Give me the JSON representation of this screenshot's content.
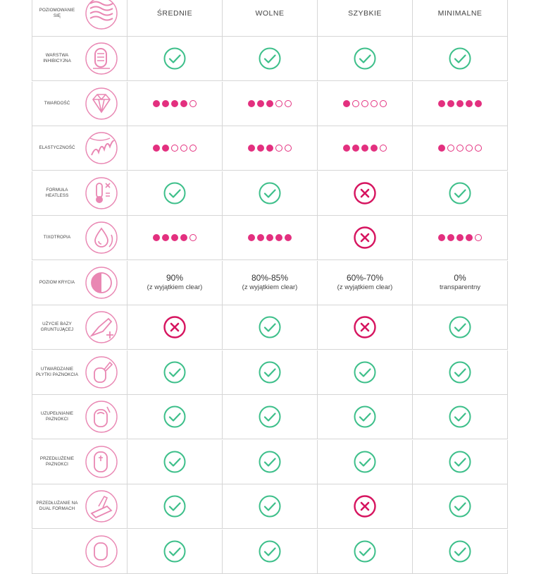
{
  "colors": {
    "check": "#3dbf8a",
    "cross": "#d6145f",
    "dot": "#e3307f",
    "icon": "#e987b3",
    "grid": "#d6d6d6"
  },
  "header": {
    "label": "POZIOMOWANIE SIĘ",
    "icon": "waves-icon",
    "columns": [
      "ŚREDNIE",
      "WOLNE",
      "SZYBKIE",
      "MINIMALNE"
    ]
  },
  "rows": [
    {
      "label": "WARSTWA INHIBICYJNA",
      "icon": "inhibition-layer-icon",
      "cells": [
        {
          "type": "check"
        },
        {
          "type": "check"
        },
        {
          "type": "check"
        },
        {
          "type": "check"
        }
      ]
    },
    {
      "label": "TWARDOŚĆ",
      "icon": "diamond-icon",
      "cells": [
        {
          "type": "dots",
          "value": 4
        },
        {
          "type": "dots",
          "value": 3
        },
        {
          "type": "dots",
          "value": 1
        },
        {
          "type": "dots",
          "value": 5
        }
      ]
    },
    {
      "label": "ELASTYCZNOŚĆ",
      "icon": "spring-icon",
      "cells": [
        {
          "type": "dots",
          "value": 2
        },
        {
          "type": "dots",
          "value": 3
        },
        {
          "type": "dots",
          "value": 4
        },
        {
          "type": "dots",
          "value": 1
        }
      ]
    },
    {
      "label": "FORMUŁA HEATLESS",
      "icon": "thermometer-icon",
      "cells": [
        {
          "type": "check"
        },
        {
          "type": "check"
        },
        {
          "type": "cross"
        },
        {
          "type": "check"
        }
      ]
    },
    {
      "label": "TIXOTROPIA",
      "icon": "drop-cycle-icon",
      "cells": [
        {
          "type": "dots",
          "value": 4
        },
        {
          "type": "dots",
          "value": 5
        },
        {
          "type": "cross"
        },
        {
          "type": "dots",
          "value": 4
        }
      ]
    },
    {
      "label": "POZIOM KRYCIA",
      "icon": "half-circle-icon",
      "cells": [
        {
          "type": "text",
          "pct": "90%",
          "note": "(z wyjątkiem clear)"
        },
        {
          "type": "text",
          "pct": "80%-85%",
          "note": "(z wyjątkiem clear)"
        },
        {
          "type": "text",
          "pct": "60%-70%",
          "note": "(z wyjątkiem clear)"
        },
        {
          "type": "text",
          "pct": "0%",
          "note": "transparentny"
        }
      ]
    },
    {
      "label": "UŻYCIE BAZY GRUNTUJĄCEJ",
      "icon": "brush-plus-icon",
      "cells": [
        {
          "type": "cross"
        },
        {
          "type": "check"
        },
        {
          "type": "cross"
        },
        {
          "type": "check"
        }
      ]
    },
    {
      "label": "UTWARDZANIE PŁYTKI PAZNOKCIA",
      "icon": "nail-brush-icon",
      "cells": [
        {
          "type": "check"
        },
        {
          "type": "check"
        },
        {
          "type": "check"
        },
        {
          "type": "check"
        }
      ]
    },
    {
      "label": "UZUPEŁNIANIE PAZNOKCI",
      "icon": "nail-refill-icon",
      "cells": [
        {
          "type": "check"
        },
        {
          "type": "check"
        },
        {
          "type": "check"
        },
        {
          "type": "check"
        }
      ]
    },
    {
      "label": "PRZEDŁUŻENIE PAZNOKCI",
      "icon": "nail-extension-icon",
      "cells": [
        {
          "type": "check"
        },
        {
          "type": "check"
        },
        {
          "type": "check"
        },
        {
          "type": "check"
        }
      ]
    },
    {
      "label": "PRZEDŁUŻANIE NA DUAL FORMACH",
      "icon": "dual-form-icon",
      "cells": [
        {
          "type": "check"
        },
        {
          "type": "check"
        },
        {
          "type": "cross"
        },
        {
          "type": "check"
        }
      ]
    },
    {
      "label": "",
      "icon": "nail-icon",
      "cells": [
        {
          "type": "check"
        },
        {
          "type": "check"
        },
        {
          "type": "check"
        },
        {
          "type": "check"
        }
      ]
    }
  ]
}
